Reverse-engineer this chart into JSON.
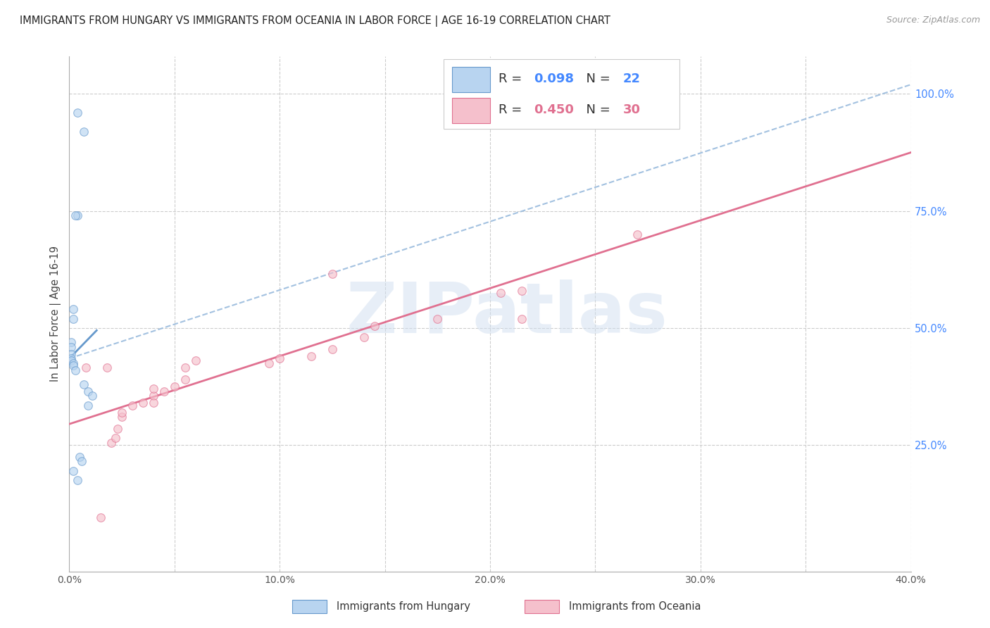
{
  "title": "IMMIGRANTS FROM HUNGARY VS IMMIGRANTS FROM OCEANIA IN LABOR FORCE | AGE 16-19 CORRELATION CHART",
  "source": "Source: ZipAtlas.com",
  "ylabel": "In Labor Force | Age 16-19",
  "xlim": [
    0.0,
    0.4
  ],
  "ylim": [
    -0.02,
    1.08
  ],
  "xtick_labels": [
    "0.0%",
    "",
    "10.0%",
    "",
    "20.0%",
    "",
    "30.0%",
    "",
    "40.0%"
  ],
  "xtick_vals": [
    0.0,
    0.05,
    0.1,
    0.15,
    0.2,
    0.25,
    0.3,
    0.35,
    0.4
  ],
  "ytick_vals_right": [
    0.25,
    0.5,
    0.75,
    1.0
  ],
  "ytick_labels_right": [
    "25.0%",
    "50.0%",
    "75.0%",
    "100.0%"
  ],
  "grid_color": "#cccccc",
  "background_color": "#ffffff",
  "hungary_color": "#b8d4f0",
  "hungary_edge_color": "#6699cc",
  "oceania_color": "#f5c0cc",
  "oceania_edge_color": "#e07090",
  "hungary_R": 0.098,
  "hungary_N": 22,
  "oceania_R": 0.45,
  "oceania_N": 30,
  "right_axis_color": "#4488ff",
  "watermark_text": "ZIPatlas",
  "hungary_scatter_x": [
    0.004,
    0.007,
    0.004,
    0.003,
    0.002,
    0.002,
    0.001,
    0.001,
    0.001,
    0.001,
    0.001,
    0.002,
    0.002,
    0.003,
    0.007,
    0.009,
    0.011,
    0.009,
    0.005,
    0.006,
    0.002,
    0.004
  ],
  "hungary_scatter_y": [
    0.96,
    0.92,
    0.74,
    0.74,
    0.54,
    0.52,
    0.47,
    0.46,
    0.445,
    0.435,
    0.43,
    0.425,
    0.42,
    0.41,
    0.38,
    0.365,
    0.355,
    0.335,
    0.225,
    0.215,
    0.195,
    0.175
  ],
  "oceania_scatter_x": [
    0.008,
    0.015,
    0.018,
    0.02,
    0.022,
    0.023,
    0.025,
    0.025,
    0.03,
    0.035,
    0.04,
    0.04,
    0.04,
    0.045,
    0.05,
    0.055,
    0.055,
    0.06,
    0.095,
    0.1,
    0.115,
    0.125,
    0.14,
    0.145,
    0.175,
    0.205,
    0.215,
    0.215,
    0.125,
    0.27
  ],
  "oceania_scatter_y": [
    0.415,
    0.095,
    0.415,
    0.255,
    0.265,
    0.285,
    0.31,
    0.32,
    0.335,
    0.34,
    0.355,
    0.37,
    0.34,
    0.365,
    0.375,
    0.39,
    0.415,
    0.43,
    0.425,
    0.435,
    0.44,
    0.455,
    0.48,
    0.505,
    0.52,
    0.575,
    0.58,
    0.52,
    0.615,
    0.7
  ],
  "hungary_trendline_x": [
    0.0,
    0.013
  ],
  "hungary_trendline_y": [
    0.435,
    0.495
  ],
  "oceania_trendline_x": [
    0.0,
    0.4
  ],
  "oceania_trendline_y": [
    0.295,
    0.875
  ],
  "dashed_trendline_x": [
    0.0,
    0.4
  ],
  "dashed_trendline_y": [
    0.435,
    1.02
  ],
  "marker_size": 70,
  "marker_alpha": 0.65,
  "trendline_linewidth": 2.0,
  "bottom_legend_labels": [
    "Immigrants from Hungary",
    "Immigrants from Oceania"
  ]
}
